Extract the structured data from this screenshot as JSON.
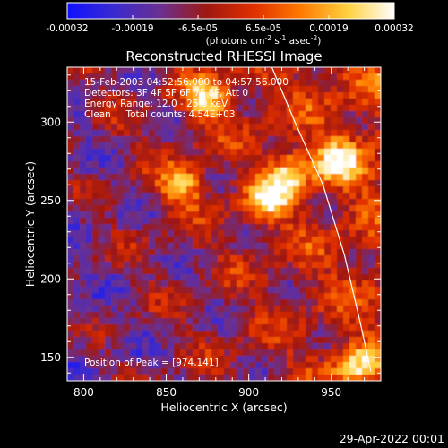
{
  "colorbar": {
    "ticks": [
      "-0.00032",
      "-0.00019",
      "-6.5e-05",
      "6.5e-05",
      "0.00019",
      "0.00032"
    ],
    "unit_prefix": "(photons cm",
    "unit_exp1": "-2",
    "unit_mid": " s",
    "unit_exp2": "-1",
    "unit_mid2": " asec",
    "unit_exp3": "-2",
    "unit_suffix": ")",
    "stops": [
      "#1010ff",
      "#3a2ad0",
      "#6a3090",
      "#a01810",
      "#e03000",
      "#ff7a00",
      "#ffd040",
      "#ffffff"
    ]
  },
  "chart_data": {
    "type": "heatmap",
    "title": "Reconstructed RHESSI Image",
    "xlabel": "Heliocentric X (arcsec)",
    "ylabel": "Heliocentric Y (arcsec)",
    "xlim": [
      790,
      980
    ],
    "ylim": [
      135,
      335
    ],
    "xticks": [
      800,
      850,
      900,
      950
    ],
    "yticks": [
      150,
      200,
      250,
      300
    ],
    "value_range": [
      -0.00032,
      0.00032
    ],
    "annotations": [
      "15-Feb-2003 04:52:56.000 to 04:57:56.000",
      "Detectors: 3F 4F 5F 6F 7F 8F, Att 0",
      "Energy Range: 12.0 - 25.0 keV",
      "Clean     Total counts: 4.54E+03"
    ],
    "peak_label": "Position of Peak = [974,141]",
    "peak": [
      974,
      141
    ],
    "bright_sources": [
      {
        "x": 912,
        "y": 250
      },
      {
        "x": 925,
        "y": 268
      },
      {
        "x": 875,
        "y": 315
      },
      {
        "x": 955,
        "y": 275
      },
      {
        "x": 965,
        "y": 145
      },
      {
        "x": 860,
        "y": 260
      }
    ],
    "limb_line": [
      [
        914,
        335
      ],
      [
        928,
        300
      ],
      [
        945,
        260
      ],
      [
        958,
        215
      ],
      [
        968,
        170
      ],
      [
        974,
        141
      ]
    ]
  },
  "footer": {
    "timestamp": "29-Apr-2022 00:01"
  }
}
